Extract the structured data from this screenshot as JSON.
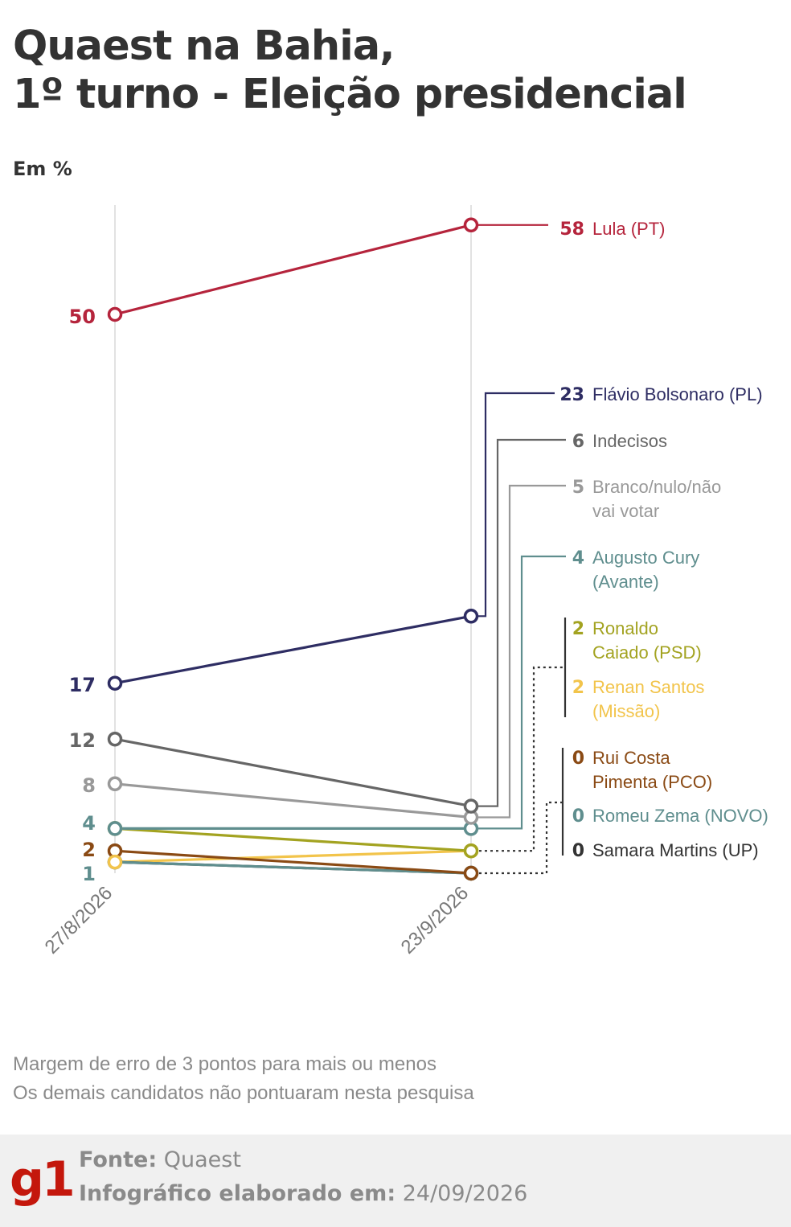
{
  "title_line1": "Quaest na Bahia,",
  "title_line2": "1º turno - Eleição presidencial",
  "unit_label": "Em %",
  "notes": [
    "Margem de erro de 3 pontos para mais ou menos",
    "Os demais candidatos não pontuaram nesta pesquisa"
  ],
  "footer": {
    "logo": "g1",
    "source_label": "Fonte:",
    "source_value": "Quaest",
    "made_label": "Infográfico elaborado em:",
    "made_value": "24/09/2026"
  },
  "chart_data": {
    "type": "line",
    "x": [
      "27/8/2026",
      "23/9/2026"
    ],
    "start_labels": [
      "50",
      "17",
      "12",
      "8",
      "4",
      "2",
      "1"
    ],
    "series": [
      {
        "name": "Lula (PT)",
        "values": [
          50,
          58
        ],
        "color": "#b5243c"
      },
      {
        "name": "Flávio Bolsonaro (PL)",
        "values": [
          17,
          23
        ],
        "color": "#2e2d63"
      },
      {
        "name": "Indecisos",
        "values": [
          12,
          6
        ],
        "color": "#666666"
      },
      {
        "name": "Branco/nulo/não vai votar",
        "values": [
          8,
          5
        ],
        "color": "#999999"
      },
      {
        "name": "Augusto Cury (Avante)",
        "values": [
          4,
          4
        ],
        "color": "#5f8e8e"
      },
      {
        "name": "Ronaldo Caiado (PSD)",
        "values": [
          4,
          2
        ],
        "color": "#a3a321"
      },
      {
        "name": "Renan Santos (Missão)",
        "values": [
          1,
          2
        ],
        "color": "#f2c44b"
      },
      {
        "name": "Rui Costa Pimenta (PCO)",
        "values": [
          2,
          0
        ],
        "color": "#8a4a14"
      },
      {
        "name": "Romeu Zema (NOVO)",
        "values": [
          1,
          0
        ],
        "color": "#5f8e8e"
      },
      {
        "name": "Samara Martins (UP)",
        "values": [
          1,
          0
        ],
        "color": "#333333"
      }
    ],
    "end_labels": [
      {
        "value": "58",
        "lines": [
          "Lula (PT)"
        ],
        "color": "#b5243c"
      },
      {
        "value": "23",
        "lines": [
          "Flávio Bolsonaro (PL)"
        ],
        "color": "#2e2d63"
      },
      {
        "value": "6",
        "lines": [
          "Indecisos"
        ],
        "color": "#666666"
      },
      {
        "value": "5",
        "lines": [
          "Branco/nulo/não",
          "vai votar"
        ],
        "color": "#999999"
      },
      {
        "value": "4",
        "lines": [
          "Augusto Cury",
          "(Avante)"
        ],
        "color": "#5f8e8e"
      },
      {
        "value": "2",
        "lines": [
          "Ronaldo",
          "Caiado (PSD)"
        ],
        "color": "#a3a321"
      },
      {
        "value": "2",
        "lines": [
          "Renan Santos",
          "(Missão)"
        ],
        "color": "#f2c44b"
      },
      {
        "value": "0",
        "lines": [
          "Rui Costa",
          "Pimenta (PCO)"
        ],
        "color": "#8a4a14"
      },
      {
        "value": "0",
        "lines": [
          "Romeu Zema (NOVO)"
        ],
        "color": "#5f8e8e"
      },
      {
        "value": "0",
        "lines": [
          "Samara Martins (UP)"
        ],
        "color": "#333333"
      }
    ]
  }
}
